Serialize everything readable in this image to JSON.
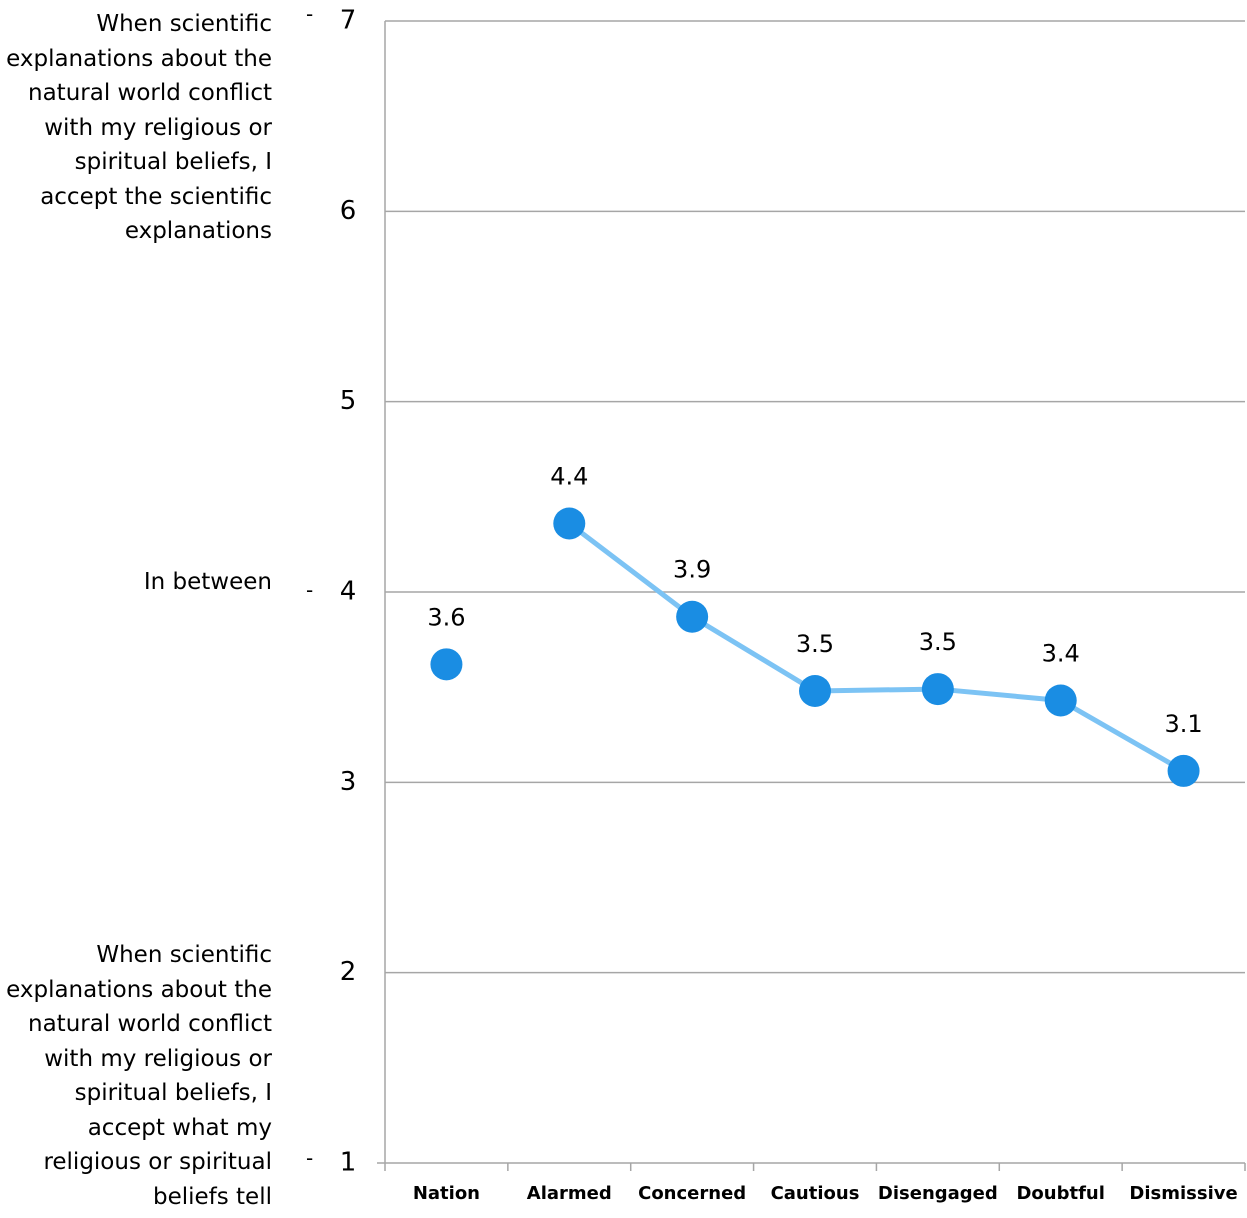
{
  "chart_data": {
    "type": "line",
    "categories": [
      "Nation",
      "Alarmed",
      "Concerned",
      "Cautious",
      "Disengaged",
      "Doubtful",
      "Dismissive"
    ],
    "series": [
      {
        "color": "#1a8de3",
        "values": [
          3.62,
          null,
          null,
          null,
          null,
          null,
          null
        ],
        "value_labels": [
          "3.6",
          null,
          null,
          null,
          null,
          null,
          null
        ]
      },
      {
        "color": "#1a8de3",
        "line_color": "#7cc3f4",
        "values": [
          null,
          4.36,
          3.87,
          3.48,
          3.49,
          3.43,
          3.06
        ],
        "value_labels": [
          null,
          "4.4",
          "3.9",
          "3.5",
          "3.5",
          "3.4",
          "3.1"
        ]
      }
    ],
    "ylim": [
      1,
      7
    ],
    "yticks": [
      1,
      2,
      3,
      4,
      5,
      6,
      7
    ],
    "grid": true,
    "y_annotations": [
      "When scientific explanations about the natural world conflict with my religious or spiritual beliefs, I accept the scientific explanations",
      "In between",
      "When scientific explanations about the natural world conflict with my religious or spiritual beliefs, I accept what my religious or spiritual beliefs tell"
    ]
  }
}
